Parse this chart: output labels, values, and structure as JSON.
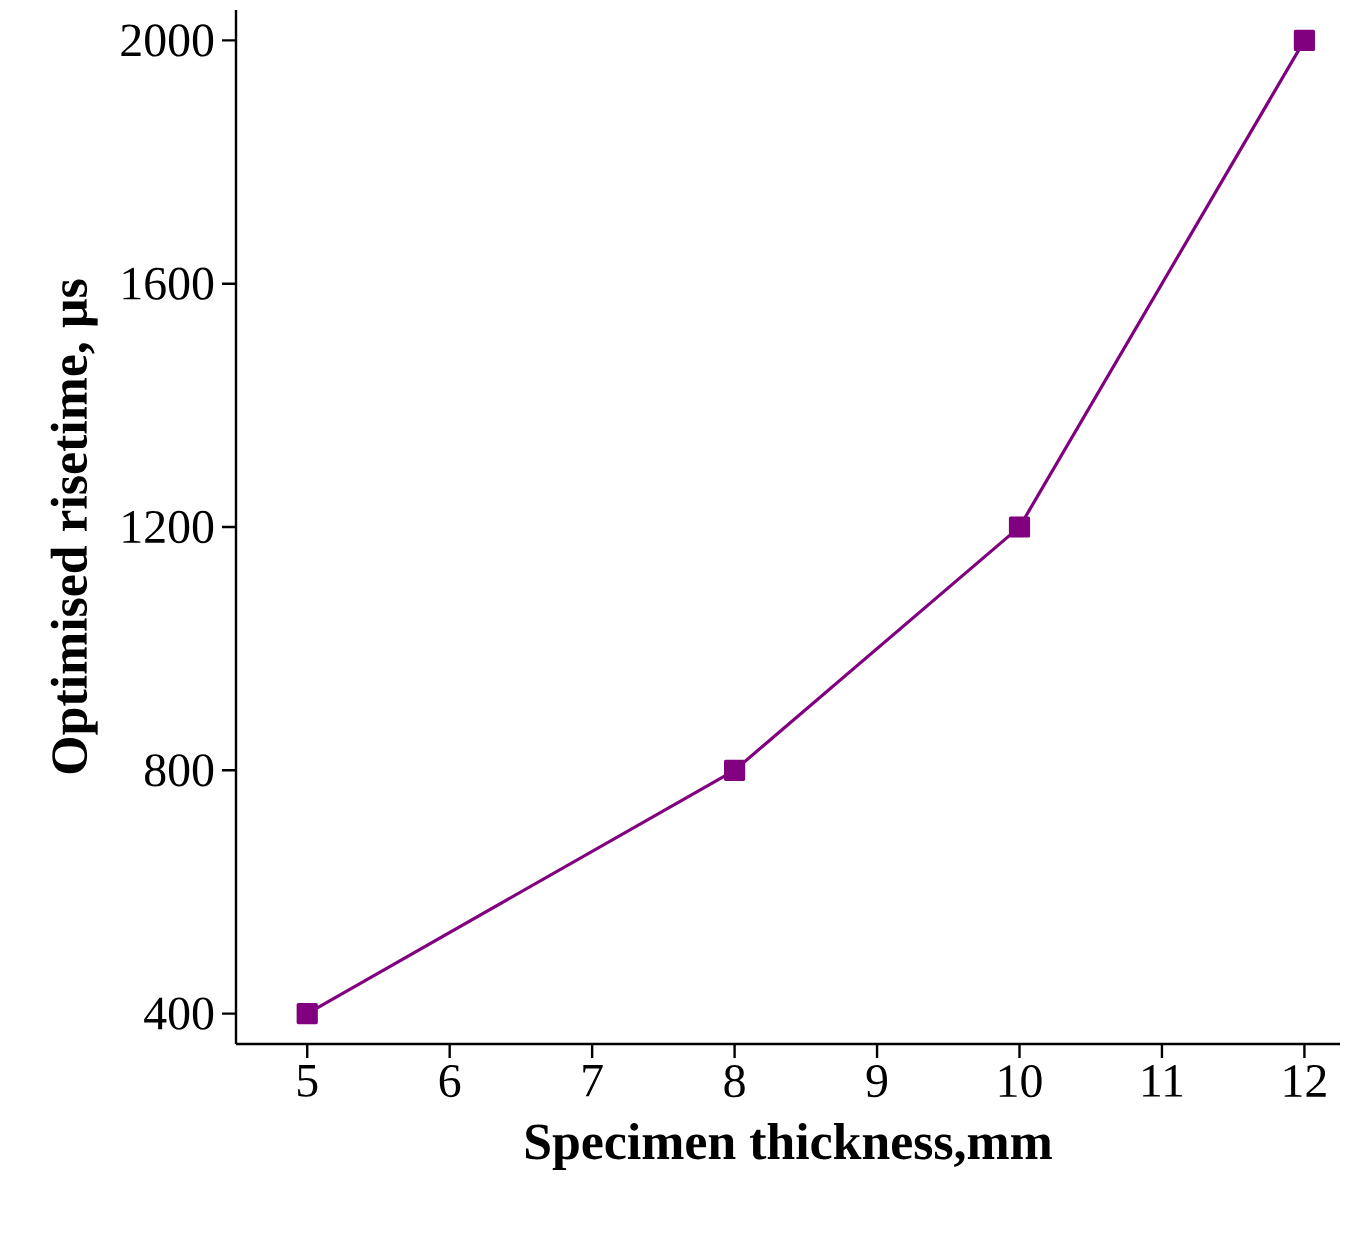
{
  "chart_data": {
    "type": "line",
    "xlabel": "Specimen thickness,mm",
    "ylabel": "Optimised risetime, µs",
    "x": [
      5,
      8,
      10,
      12
    ],
    "series": [
      {
        "color": "#800080",
        "values": [
          400,
          800,
          1200,
          2000
        ]
      }
    ],
    "xlim": [
      4.5,
      12.25
    ],
    "ylim": [
      350,
      2050
    ],
    "xticks": [
      5,
      6,
      7,
      8,
      9,
      10,
      11,
      12
    ],
    "yticks": [
      400,
      800,
      1200,
      1600,
      2000
    ],
    "grid": false,
    "marker": "square",
    "line_style": "solid"
  }
}
